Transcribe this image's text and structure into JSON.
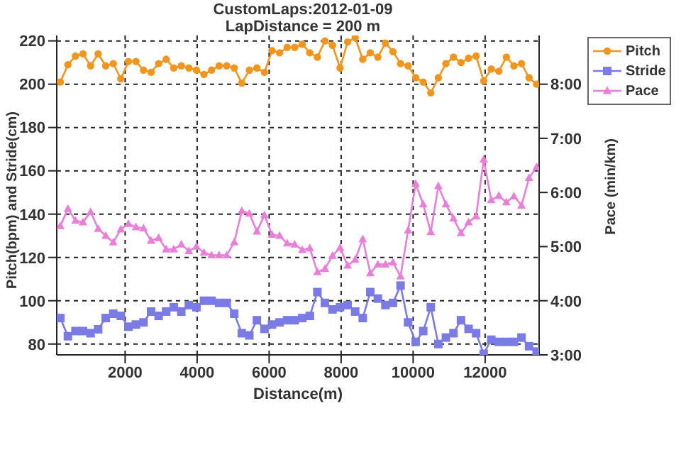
{
  "chart_data": {
    "type": "line",
    "title": "CustomLaps:2012-01-09",
    "subtitle": "LapDistance = 200 m",
    "xlabel": "Distance(m)",
    "ylabel": "Pitch(bpm) and Stride(cm)",
    "y2label": "Pace (min/km)",
    "x": [
      200,
      410,
      620,
      830,
      1040,
      1250,
      1460,
      1670,
      1880,
      2090,
      2300,
      2510,
      2720,
      2930,
      3140,
      3350,
      3560,
      3770,
      3980,
      4190,
      4400,
      4610,
      4820,
      5030,
      5240,
      5450,
      5660,
      5870,
      6080,
      6290,
      6500,
      6710,
      6920,
      7130,
      7340,
      7550,
      7760,
      7970,
      8180,
      8390,
      8600,
      8810,
      9020,
      9230,
      9440,
      9650,
      9860,
      10070,
      10280,
      10490,
      10700,
      10910,
      11120,
      11330,
      11540,
      11750,
      11960,
      12170,
      12380,
      12590,
      12800,
      13010,
      13220,
      13430
    ],
    "series": [
      {
        "name": "Pitch",
        "color": "#f0961e",
        "marker": "circle",
        "values": [
          201,
          209,
          213,
          214,
          208.5,
          214,
          208.5,
          209.5,
          202.5,
          210.5,
          210.5,
          206.5,
          205.5,
          209.5,
          211.5,
          207.5,
          208.5,
          207.5,
          206.5,
          204.5,
          206.5,
          208.5,
          208.5,
          207.5,
          200.5,
          206.5,
          207.5,
          205.5,
          215.5,
          214.5,
          217,
          217,
          218.5,
          214.5,
          212.5,
          220,
          218,
          207.5,
          219.5,
          221.5,
          211.5,
          214.5,
          212.5,
          219,
          215,
          209.5,
          208.5,
          203,
          201,
          196,
          203,
          209.5,
          212.5,
          210,
          212,
          213,
          201.5,
          207,
          206,
          212.5,
          208.5,
          209.5,
          203,
          200
        ]
      },
      {
        "name": "Stride",
        "color": "#7b7be6",
        "marker": "square",
        "values": [
          92,
          83.6,
          86,
          86,
          85,
          86.8,
          92,
          94,
          93,
          88,
          89,
          90,
          95,
          93,
          95,
          97,
          95,
          98,
          97,
          100,
          100,
          99,
          99,
          94,
          85,
          84,
          91,
          87,
          89,
          90,
          91,
          91,
          92,
          93,
          104,
          99,
          96,
          97,
          98,
          95,
          92,
          104,
          101,
          98,
          99,
          107,
          90,
          81,
          86,
          97,
          80,
          83,
          85,
          91,
          87,
          85,
          75.5,
          82,
          81,
          81,
          81,
          83,
          79,
          76.5
        ]
      },
      {
        "name": "Pace",
        "color": "#e97fd9",
        "marker": "triangle",
        "axis": "y2",
        "values": [
          5.38,
          5.7,
          5.48,
          5.45,
          5.64,
          5.33,
          5.2,
          5.08,
          5.32,
          5.42,
          5.36,
          5.34,
          5.11,
          5.16,
          4.95,
          4.95,
          5.04,
          4.92,
          5.0,
          4.89,
          4.84,
          4.84,
          4.84,
          5.08,
          5.66,
          5.61,
          5.28,
          5.58,
          5.22,
          5.2,
          5.06,
          5.04,
          4.94,
          4.97,
          4.53,
          4.59,
          4.83,
          4.98,
          4.65,
          4.76,
          5.14,
          4.51,
          4.67,
          4.67,
          4.71,
          4.45,
          5.3,
          6.16,
          5.78,
          5.27,
          6.12,
          5.78,
          5.52,
          5.25,
          5.45,
          5.56,
          6.61,
          5.86,
          5.94,
          5.82,
          5.93,
          5.76,
          6.27,
          6.47
        ]
      }
    ],
    "xlim": [
      100,
      13500
    ],
    "xticks": [
      2000,
      4000,
      6000,
      8000,
      10000,
      12000
    ],
    "ylim": [
      75,
      222.5
    ],
    "yticks": [
      80,
      100,
      120,
      140,
      160,
      180,
      200,
      220
    ],
    "y2lim": [
      3,
      8.9
    ],
    "y2ticks": [
      {
        "value": 3,
        "label": "3:00"
      },
      {
        "value": 4,
        "label": "4:00"
      },
      {
        "value": 5,
        "label": "5:00"
      },
      {
        "value": 6,
        "label": "6:00"
      },
      {
        "value": 7,
        "label": "7:00"
      },
      {
        "value": 8,
        "label": "8:00"
      }
    ],
    "grid": true,
    "legend": "top right",
    "line_style": "solid"
  }
}
